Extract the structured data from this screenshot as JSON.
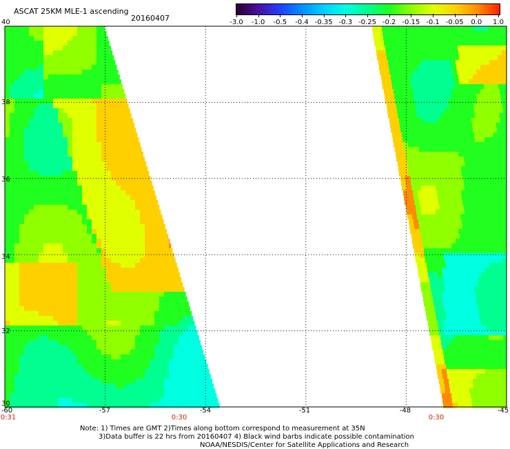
{
  "header": {
    "title": "ASCAT 25KM MLE-1 ascending",
    "date": "20160407"
  },
  "colorbar": {
    "labels": [
      "-3.0",
      "-1.0",
      "-0.5",
      "-0.4",
      "-0.35",
      "-0.3",
      "-0.25",
      "-0.2",
      "-0.15",
      "-0.1",
      "-0.05",
      "0.0",
      "1.0"
    ],
    "colors": [
      "#2a0030",
      "#4a10a0",
      "#2040ff",
      "#0090ff",
      "#00d0ff",
      "#00ffe0",
      "#00ff90",
      "#20ff20",
      "#90ff00",
      "#e0ff00",
      "#ffd000",
      "#ff8c00",
      "#ff2000"
    ]
  },
  "axes": {
    "lat_labels": [
      "40",
      "38",
      "36",
      "34",
      "32",
      "30"
    ],
    "lat_values": [
      40,
      38,
      36,
      34,
      32,
      30
    ],
    "lon_labels": [
      "-60",
      "-57",
      "-54",
      "-51",
      "-48",
      "-45"
    ],
    "lon_values": [
      -60,
      -57,
      -54,
      -51,
      -48,
      -45
    ]
  },
  "time_labels": [
    {
      "text": "0:31",
      "lon": -60
    },
    {
      "text": "0:30",
      "lon": -55.8
    },
    {
      "text": "0:30",
      "lon": -46.6
    }
  ],
  "notes": {
    "line1": "Note: 1) Times are GMT 2)Times along bottom correspond to measurement at 35N",
    "line2": "3)Data buffer is 22 hrs from 20160407 4) Black wind barbs indicate possible contamination",
    "line3": "NOAA/NESDIS/Center for Satellite Applications and Research"
  }
}
